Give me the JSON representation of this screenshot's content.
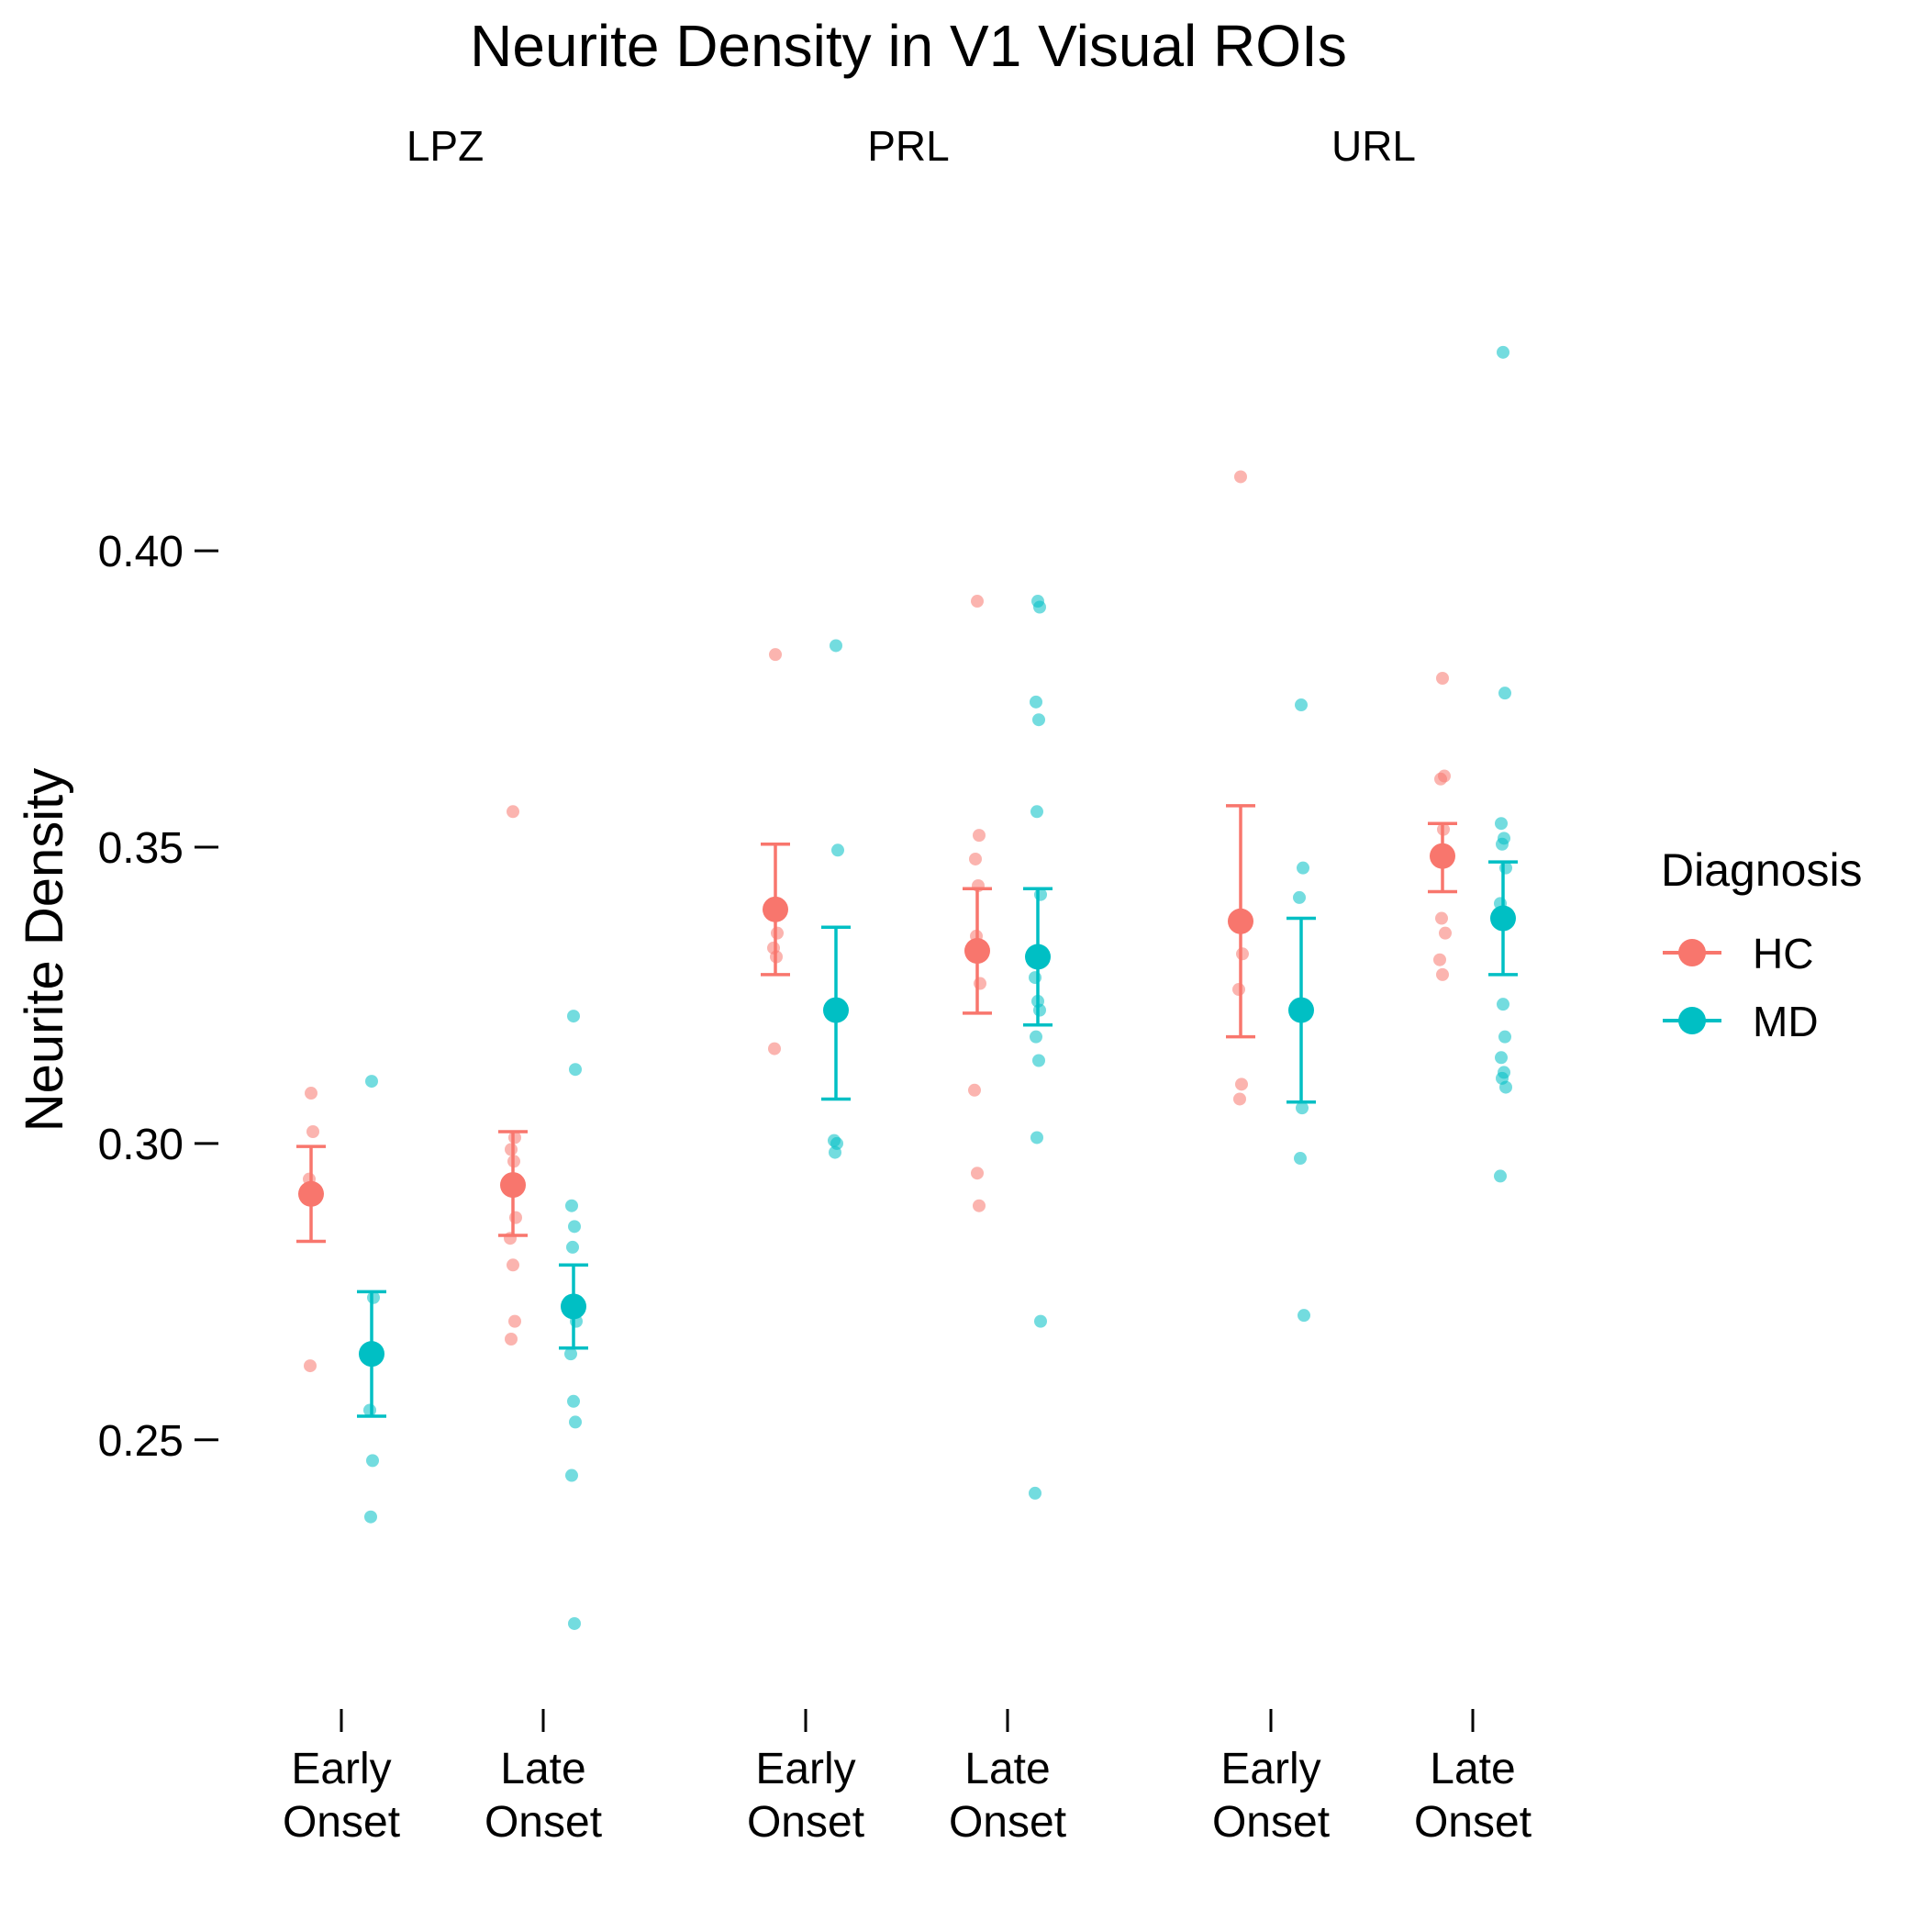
{
  "chart_data": {
    "type": "scatter",
    "title": "Neurite Density in V1 Visual ROIs",
    "xlabel": "",
    "ylabel": "Neurite Density",
    "ylim": [
      0.208,
      0.455
    ],
    "yticks": [
      {
        "value": 0.25,
        "label": "0.25"
      },
      {
        "value": 0.3,
        "label": "0.30"
      },
      {
        "value": 0.35,
        "label": "0.35"
      },
      {
        "value": 0.4,
        "label": "0.40"
      }
    ],
    "grid": false,
    "legend": {
      "title": "Diagnosis",
      "position": "right"
    },
    "colors": {
      "HC": "#F8766D",
      "MD": "#00BFC4"
    },
    "series": [
      {
        "name": "HC",
        "color": "#F8766D"
      },
      {
        "name": "MD",
        "color": "#00BFC4"
      }
    ],
    "panels": [
      {
        "label": "LPZ",
        "groups": [
          {
            "label_line1": "Early",
            "label_line2": "Onset",
            "HC": {
              "mean": 0.2915,
              "lower": 0.2835,
              "upper": 0.2995,
              "points": [
                0.3085,
                0.302,
                0.294,
                0.2925,
                0.2625
              ]
            },
            "MD": {
              "mean": 0.2645,
              "lower": 0.254,
              "upper": 0.275,
              "points": [
                0.3105,
                0.274,
                0.255,
                0.2465,
                0.237
              ]
            }
          },
          {
            "label_line1": "Late",
            "label_line2": "Onset",
            "HC": {
              "mean": 0.293,
              "lower": 0.2845,
              "upper": 0.302,
              "points": [
                0.356,
                0.301,
                0.299,
                0.297,
                0.294,
                0.2875,
                0.284,
                0.2795,
                0.27,
                0.267
              ]
            },
            "MD": {
              "mean": 0.2725,
              "lower": 0.2655,
              "upper": 0.2795,
              "points": [
                0.3215,
                0.3125,
                0.2895,
                0.286,
                0.2825,
                0.27,
                0.2645,
                0.2565,
                0.253,
                0.244,
                0.219
              ]
            }
          }
        ]
      },
      {
        "label": "PRL",
        "groups": [
          {
            "label_line1": "Early",
            "label_line2": "Onset",
            "HC": {
              "mean": 0.3395,
              "lower": 0.3285,
              "upper": 0.3505,
              "points": [
                0.3825,
                0.3355,
                0.333,
                0.3315,
                0.316
              ]
            },
            "MD": {
              "mean": 0.3225,
              "lower": 0.3075,
              "upper": 0.3365,
              "points": [
                0.384,
                0.3495,
                0.3005,
                0.3,
                0.2985
              ]
            }
          },
          {
            "label_line1": "Late",
            "label_line2": "Onset",
            "HC": {
              "mean": 0.3325,
              "lower": 0.322,
              "upper": 0.343,
              "points": [
                0.3915,
                0.352,
                0.348,
                0.3435,
                0.335,
                0.327,
                0.309,
                0.295,
                0.2895
              ]
            },
            "MD": {
              "mean": 0.3315,
              "lower": 0.32,
              "upper": 0.343,
              "points": [
                0.3915,
                0.3905,
                0.3745,
                0.3715,
                0.356,
                0.342,
                0.328,
                0.324,
                0.3225,
                0.318,
                0.314,
                0.301,
                0.27,
                0.241
              ]
            }
          }
        ]
      },
      {
        "label": "URL",
        "groups": [
          {
            "label_line1": "Early",
            "label_line2": "Onset",
            "HC": {
              "mean": 0.3375,
              "lower": 0.318,
              "upper": 0.357,
              "points": [
                0.4125,
                0.332,
                0.326,
                0.31,
                0.3075
              ]
            },
            "MD": {
              "mean": 0.3225,
              "lower": 0.307,
              "upper": 0.338,
              "points": [
                0.374,
                0.3465,
                0.3415,
                0.306,
                0.2975,
                0.271
              ]
            }
          },
          {
            "label_line1": "Late",
            "label_line2": "Onset",
            "HC": {
              "mean": 0.3485,
              "lower": 0.3425,
              "upper": 0.354,
              "points": [
                0.3785,
                0.362,
                0.3615,
                0.353,
                0.338,
                0.3355,
                0.331,
                0.3285
              ]
            },
            "MD": {
              "mean": 0.338,
              "lower": 0.3285,
              "upper": 0.3475,
              "points": [
                0.4335,
                0.376,
                0.354,
                0.3515,
                0.3505,
                0.3465,
                0.3405,
                0.3235,
                0.318,
                0.3145,
                0.312,
                0.311,
                0.3095,
                0.2945
              ]
            }
          }
        ]
      }
    ]
  }
}
